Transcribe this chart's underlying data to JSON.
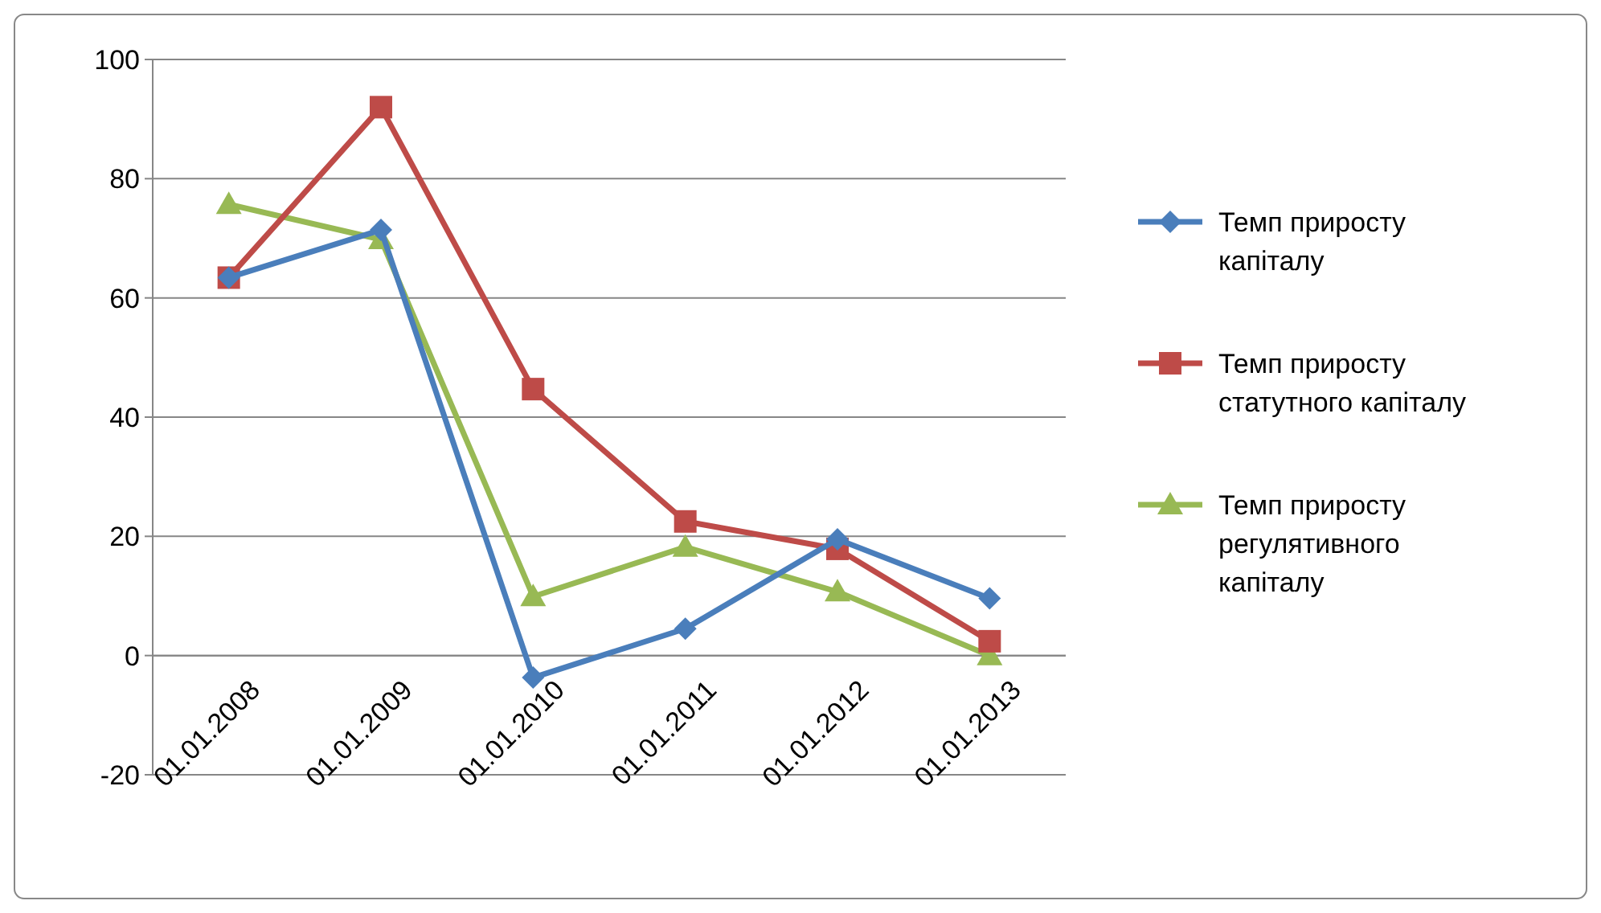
{
  "chart_data": {
    "type": "line",
    "categories": [
      "01.01.2008",
      "01.01.2009",
      "01.01.2010",
      "01.01.2011",
      "01.01.2012",
      "01.01.2013"
    ],
    "series": [
      {
        "name": "Темп приросту капіталу",
        "color": "#4a7ebb",
        "marker": "diamond",
        "values": [
          63.4,
          71.4,
          -3.7,
          4.5,
          19.5,
          9.6
        ]
      },
      {
        "name": "Темп приросту статутного капіталу",
        "color": "#be4b48",
        "marker": "square",
        "values": [
          63.4,
          92,
          44.7,
          22.5,
          17.9,
          2.4
        ]
      },
      {
        "name": "Темп приросту регулятивного капіталу",
        "color": "#98b954",
        "marker": "triangle",
        "values": [
          75.7,
          69.8,
          9.9,
          18.2,
          10.7,
          0
        ]
      }
    ],
    "ylim": [
      -20,
      100
    ],
    "yticks": [
      -20,
      0,
      20,
      40,
      60,
      80,
      100
    ],
    "grid": "y",
    "legend": "right",
    "line_style": "solid"
  }
}
